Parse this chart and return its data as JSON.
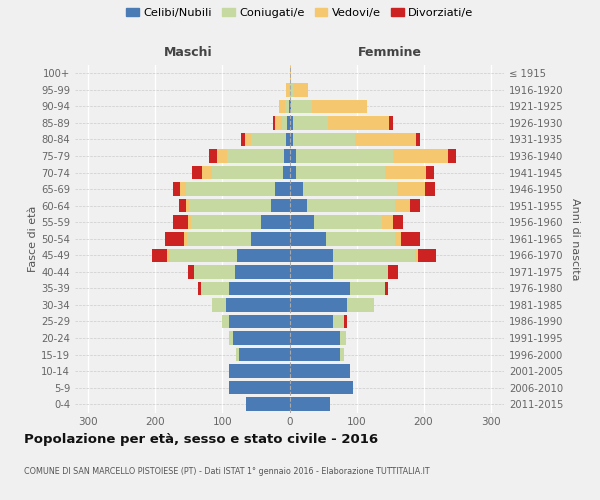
{
  "age_groups": [
    "0-4",
    "5-9",
    "10-14",
    "15-19",
    "20-24",
    "25-29",
    "30-34",
    "35-39",
    "40-44",
    "45-49",
    "50-54",
    "55-59",
    "60-64",
    "65-69",
    "70-74",
    "75-79",
    "80-84",
    "85-89",
    "90-94",
    "95-99",
    "100+"
  ],
  "birth_years": [
    "2011-2015",
    "2006-2010",
    "2001-2005",
    "1996-2000",
    "1991-1995",
    "1986-1990",
    "1981-1985",
    "1976-1980",
    "1971-1975",
    "1966-1970",
    "1961-1965",
    "1956-1960",
    "1951-1955",
    "1946-1950",
    "1941-1945",
    "1936-1940",
    "1931-1935",
    "1926-1930",
    "1921-1925",
    "1916-1920",
    "≤ 1915"
  ],
  "colors": {
    "celibe": "#4a7bb5",
    "coniugato": "#c5d9a0",
    "vedovo": "#f5c76e",
    "divorziato": "#cc2222"
  },
  "maschi": {
    "celibe": [
      65,
      90,
      90,
      75,
      85,
      90,
      95,
      90,
      82,
      78,
      58,
      42,
      28,
      22,
      10,
      8,
      5,
      3,
      1,
      0,
      0
    ],
    "coniugato": [
      0,
      0,
      0,
      5,
      5,
      10,
      20,
      42,
      60,
      100,
      95,
      105,
      122,
      132,
      105,
      85,
      52,
      8,
      5,
      0,
      0
    ],
    "vedovo": [
      0,
      0,
      0,
      0,
      0,
      0,
      0,
      0,
      0,
      5,
      5,
      5,
      5,
      10,
      15,
      15,
      10,
      10,
      10,
      5,
      0
    ],
    "divorziato": [
      0,
      0,
      0,
      0,
      0,
      0,
      0,
      5,
      10,
      22,
      27,
      22,
      10,
      10,
      15,
      12,
      5,
      3,
      0,
      0,
      0
    ]
  },
  "femmine": {
    "celibe": [
      60,
      95,
      90,
      76,
      75,
      65,
      86,
      90,
      65,
      65,
      55,
      36,
      26,
      20,
      10,
      10,
      5,
      5,
      2,
      0,
      0
    ],
    "coniugato": [
      0,
      0,
      0,
      5,
      10,
      16,
      40,
      52,
      82,
      122,
      102,
      102,
      132,
      140,
      132,
      145,
      92,
      52,
      32,
      5,
      0
    ],
    "vedovo": [
      0,
      0,
      0,
      0,
      0,
      0,
      0,
      0,
      0,
      5,
      10,
      16,
      22,
      42,
      62,
      82,
      92,
      92,
      82,
      22,
      2
    ],
    "divorziato": [
      0,
      0,
      0,
      0,
      0,
      5,
      0,
      5,
      15,
      27,
      27,
      16,
      15,
      15,
      12,
      12,
      5,
      5,
      0,
      0,
      0
    ]
  },
  "xlim": 320,
  "title": "Popolazione per età, sesso e stato civile - 2016",
  "subtitle": "COMUNE DI SAN MARCELLO PISTOIESE (PT) - Dati ISTAT 1° gennaio 2016 - Elaborazione TUTTITALIA.IT",
  "ylabel_left": "Fasce di età",
  "ylabel_right": "Anni di nascita",
  "xlabel_left": "Maschi",
  "xlabel_right": "Femmine",
  "bg_color": "#f0f0f0",
  "bar_height": 0.82
}
